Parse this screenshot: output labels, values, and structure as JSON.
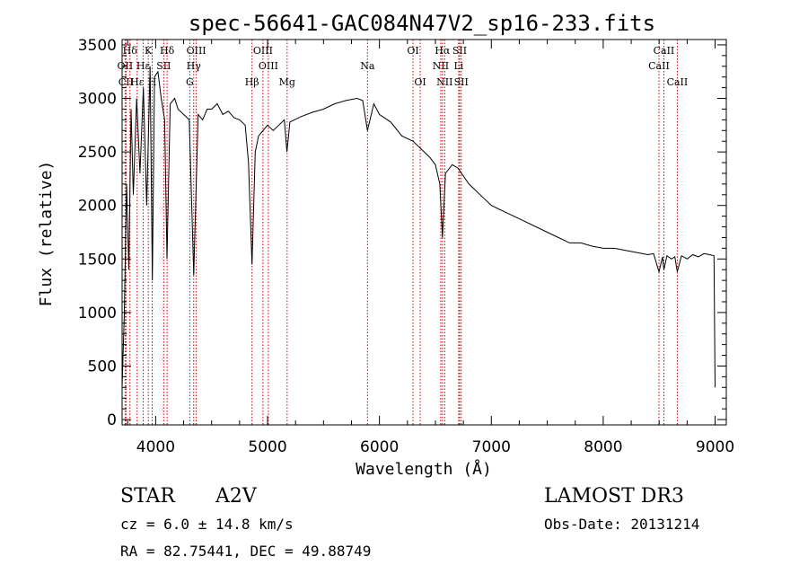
{
  "chart_data": {
    "type": "line",
    "title": "spec-56641-GAC084N47V2_sp16-233.fits",
    "xlabel": "Wavelength (Å)",
    "ylabel": "Flux (relative)",
    "xlim": [
      3700,
      9100
    ],
    "ylim": [
      -50,
      3550
    ],
    "xticks": [
      4000,
      5000,
      6000,
      7000,
      8000,
      9000
    ],
    "yticks": [
      0,
      500,
      1000,
      1500,
      2000,
      2500,
      3000,
      3500
    ],
    "line_color": "#000000",
    "marker_color": "#cc0000",
    "spectrum": {
      "name": "flux",
      "x": [
        3700,
        3720,
        3740,
        3760,
        3780,
        3800,
        3830,
        3860,
        3890,
        3920,
        3950,
        3970,
        3990,
        4020,
        4050,
        4080,
        4101,
        4130,
        4170,
        4200,
        4250,
        4300,
        4340,
        4380,
        4420,
        4460,
        4500,
        4550,
        4600,
        4650,
        4700,
        4750,
        4800,
        4830,
        4861,
        4890,
        4920,
        4960,
        5000,
        5050,
        5100,
        5150,
        5173,
        5200,
        5300,
        5400,
        5500,
        5600,
        5700,
        5800,
        5850,
        5893,
        5950,
        6000,
        6100,
        6200,
        6300,
        6400,
        6450,
        6500,
        6540,
        6563,
        6590,
        6650,
        6700,
        6800,
        6900,
        7000,
        7100,
        7200,
        7300,
        7400,
        7500,
        7600,
        7700,
        7800,
        7900,
        8000,
        8100,
        8200,
        8300,
        8400,
        8450,
        8498,
        8530,
        8542,
        8570,
        8610,
        8640,
        8662,
        8700,
        8750,
        8800,
        8850,
        8900,
        8950,
        8990,
        9000
      ],
      "values": [
        300,
        1000,
        2200,
        1400,
        2900,
        2100,
        3000,
        2300,
        3100,
        2000,
        3300,
        1300,
        3200,
        3250,
        3000,
        2800,
        1500,
        2950,
        3000,
        2900,
        2850,
        2800,
        1350,
        2850,
        2800,
        2900,
        2900,
        2950,
        2850,
        2880,
        2820,
        2800,
        2750,
        2400,
        1450,
        2500,
        2650,
        2700,
        2750,
        2700,
        2750,
        2800,
        2500,
        2780,
        2830,
        2870,
        2900,
        2950,
        2980,
        3000,
        2980,
        2700,
        2950,
        2850,
        2780,
        2650,
        2600,
        2500,
        2450,
        2380,
        2200,
        1700,
        2300,
        2380,
        2350,
        2200,
        2100,
        2000,
        1950,
        1900,
        1850,
        1800,
        1750,
        1700,
        1650,
        1650,
        1620,
        1600,
        1600,
        1580,
        1560,
        1540,
        1550,
        1380,
        1520,
        1400,
        1530,
        1500,
        1520,
        1380,
        1530,
        1500,
        1540,
        1520,
        1550,
        1540,
        1530,
        300
      ]
    },
    "line_markers": [
      {
        "name": "Hδ",
        "wavelength": 3770,
        "row": 1
      },
      {
        "name": "OII",
        "wavelength": 3727,
        "row": 2
      },
      {
        "name": "CII",
        "wavelength": 3735,
        "row": 3
      },
      {
        "name": "Hε",
        "wavelength": 3835,
        "row": 3
      },
      {
        "name": "K",
        "wavelength": 3934,
        "row": 1
      },
      {
        "name": "Hε",
        "wavelength": 3889,
        "row": 2
      },
      {
        "name": "H",
        "wavelength": 3969,
        "row": 3
      },
      {
        "name": "Hδ",
        "wavelength": 4102,
        "row": 1
      },
      {
        "name": "SII",
        "wavelength": 4072,
        "row": 2
      },
      {
        "name": "OIII",
        "wavelength": 4363,
        "row": 1
      },
      {
        "name": "Hγ",
        "wavelength": 4340,
        "row": 2
      },
      {
        "name": "G",
        "wavelength": 4305,
        "row": 3
      },
      {
        "name": "Hβ",
        "wavelength": 4861,
        "row": 3
      },
      {
        "name": "OIII",
        "wavelength": 4959,
        "row": 1
      },
      {
        "name": "OIII",
        "wavelength": 5007,
        "row": 2
      },
      {
        "name": "Mg",
        "wavelength": 5175,
        "row": 3
      },
      {
        "name": "Na",
        "wavelength": 5893,
        "row": 2
      },
      {
        "name": "OI",
        "wavelength": 6300,
        "row": 1
      },
      {
        "name": "OI",
        "wavelength": 6364,
        "row": 3
      },
      {
        "name": "Hα",
        "wavelength": 6563,
        "row": 1
      },
      {
        "name": "NII",
        "wavelength": 6548,
        "row": 2
      },
      {
        "name": "NII",
        "wavelength": 6583,
        "row": 3
      },
      {
        "name": "SII",
        "wavelength": 6717,
        "row": 1
      },
      {
        "name": "Li",
        "wavelength": 6708,
        "row": 2
      },
      {
        "name": "SII",
        "wavelength": 6731,
        "row": 3
      },
      {
        "name": "CaII",
        "wavelength": 8542,
        "row": 1
      },
      {
        "name": "CaII",
        "wavelength": 8498,
        "row": 2
      },
      {
        "name": "CaII",
        "wavelength": 8662,
        "row": 3
      }
    ]
  },
  "info": {
    "class_label": "STAR",
    "subclass": "A2V",
    "survey": "LAMOST DR3",
    "redshift": "cz = 6.0 ± 14.8 km/s",
    "obs_date": "Obs-Date: 20131214",
    "coords": "RA =  82.75441, DEC =  49.88749"
  }
}
